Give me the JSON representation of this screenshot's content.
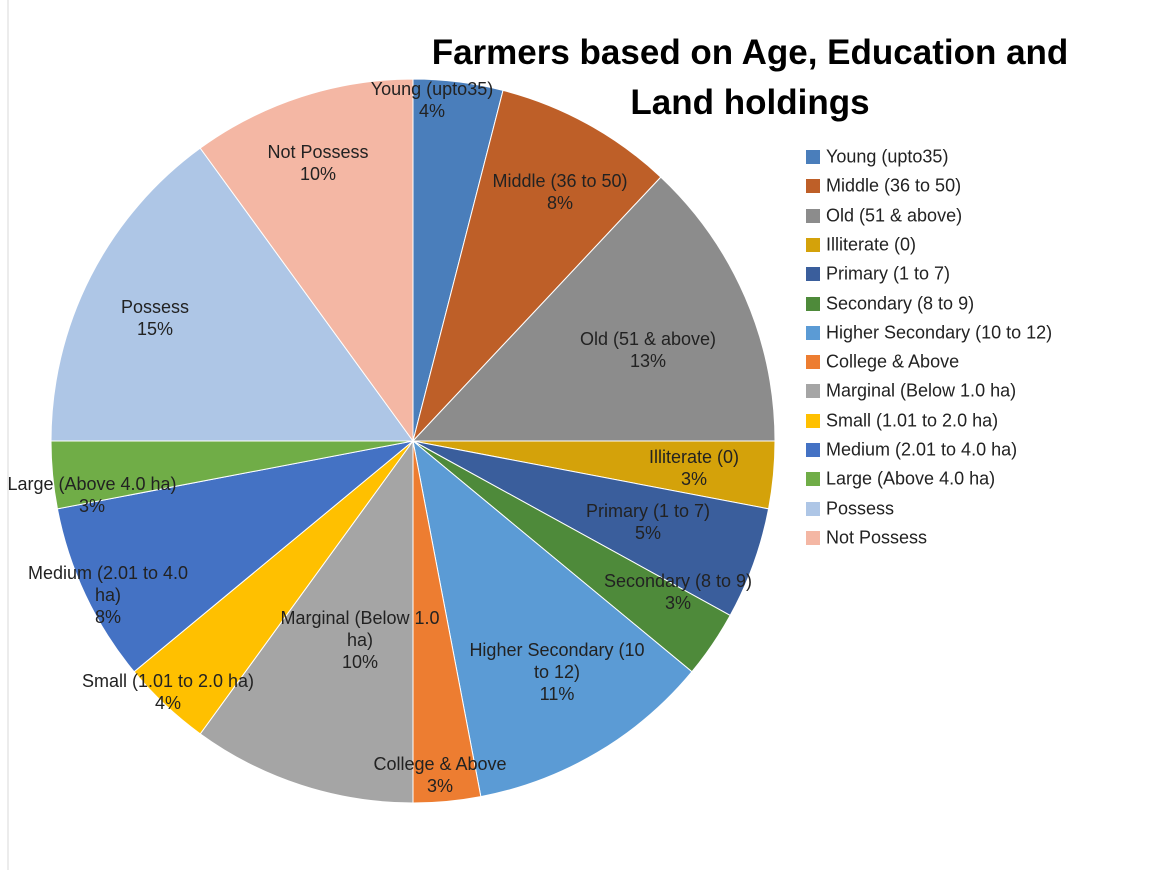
{
  "chart_data": {
    "type": "pie",
    "title": "Farmers based on Age, Education and Land holdings",
    "categories": [
      "Young (upto35)",
      "Middle (36 to 50)",
      "Old (51 & above)",
      "Illiterate (0)",
      "Primary (1 to 7)",
      "Secondary (8 to 9)",
      "Higher Secondary  (10 to 12)",
      "College & Above",
      "Marginal (Below 1.0 ha)",
      "Small (1.01 to 2.0 ha)",
      "Medium (2.01 to 4.0 ha)",
      "Large (Above 4.0 ha)",
      "Possess",
      "Not Possess"
    ],
    "values": [
      4,
      8,
      13,
      3,
      5,
      3,
      11,
      3,
      10,
      4,
      8,
      3,
      15,
      10
    ],
    "value_labels": [
      "4%",
      "8%",
      "13%",
      "3%",
      "5%",
      "3%",
      "11%",
      "3%",
      "10%",
      "4%",
      "8%",
      "3%",
      "15%",
      "10%"
    ],
    "colors": [
      "#4a7ebb",
      "#be5f28",
      "#8c8c8c",
      "#d4a20a",
      "#3a5e9c",
      "#4e8a3a",
      "#5b9bd5",
      "#ed7d31",
      "#a5a5a5",
      "#ffc000",
      "#4472c4",
      "#70ad47",
      "#aec6e6",
      "#f4b7a4"
    ],
    "legend": "right"
  }
}
